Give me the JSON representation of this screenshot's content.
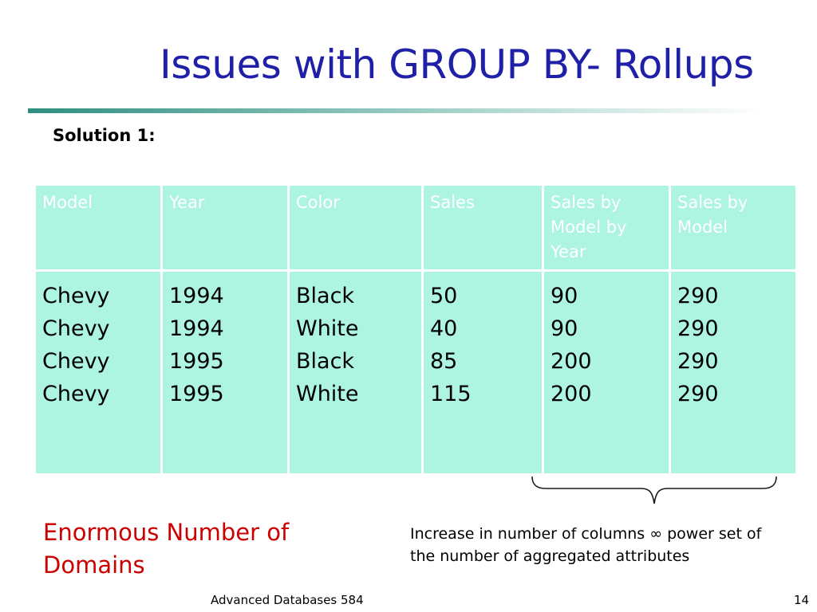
{
  "slide": {
    "title": "Issues with GROUP BY- Rollups",
    "subtitle": "Solution 1:"
  },
  "table": {
    "headers": [
      "Model",
      "Year",
      "Color",
      "Sales",
      "Sales by Model by Year",
      "Sales by Model"
    ],
    "columns": [
      [
        "Chevy",
        "Chevy",
        "Chevy",
        "Chevy"
      ],
      [
        "1994",
        "1994",
        "1995",
        "1995"
      ],
      [
        "Black",
        "White",
        "Black",
        "White"
      ],
      [
        "50",
        "40",
        "85",
        "115"
      ],
      [
        "90",
        "90",
        "200",
        "200"
      ],
      [
        "290",
        "290",
        "290",
        "290"
      ]
    ]
  },
  "notes": {
    "left": "Enormous Number of Domains",
    "right": "Increase in number of columns  ∞ power set of the number of aggregated attributes"
  },
  "footer": {
    "course": "Advanced Databases 584",
    "page": "14"
  },
  "colors": {
    "title": "#1f1fa8",
    "cell_bg": "#adf5e0",
    "header_text": "#ffffff",
    "note_red": "#cc0000"
  }
}
